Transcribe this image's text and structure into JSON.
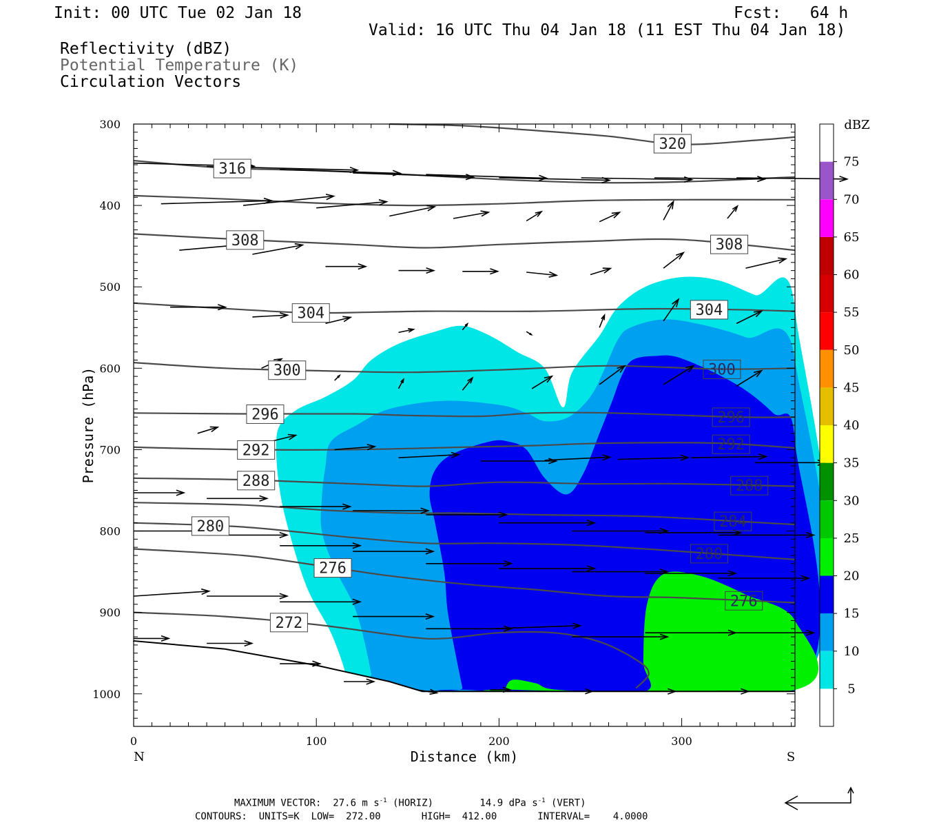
{
  "header": {
    "init": "Init: 00 UTC Tue 02 Jan 18",
    "fcst": "Fcst:   64 h",
    "valid": "Valid: 16 UTC Thu 04 Jan 18 (11 EST Thu 04 Jan 18)",
    "field1": "Reflectivity (dBZ)",
    "field2": "Potential Temperature (K)",
    "field3": "Circulation Vectors"
  },
  "chart_data": {
    "type": "cross-section",
    "xlabel": "Distance (km)",
    "ylabel": "Pressure (hPa)",
    "xlim": [
      0,
      362
    ],
    "ylim": [
      1040,
      300
    ],
    "x_ticks": [
      0,
      100,
      200,
      300
    ],
    "y_ticks": [
      300,
      400,
      500,
      600,
      700,
      800,
      900,
      1000
    ],
    "x_end_labels": {
      "left": "N",
      "right": "S"
    },
    "colorbar": {
      "title": "dBZ",
      "levels": [
        5,
        10,
        15,
        20,
        25,
        30,
        35,
        40,
        45,
        50,
        55,
        60,
        65,
        70,
        75
      ],
      "colors": [
        "#ffffff",
        "#00e6e6",
        "#00a0f0",
        "#0000f0",
        "#00f000",
        "#00c800",
        "#009000",
        "#ffff00",
        "#e6be00",
        "#ff9000",
        "#ff0000",
        "#d60000",
        "#c00000",
        "#ff00ff",
        "#9955c9",
        "#ffffff"
      ]
    },
    "reflectivity_regions": [
      {
        "dbz": 5,
        "color": "#00e6e6",
        "points": [
          [
            116,
            975
          ],
          [
            108,
            925
          ],
          [
            95,
            870
          ],
          [
            85,
            800
          ],
          [
            80,
            750
          ],
          [
            78,
            700
          ],
          [
            80,
            670
          ],
          [
            90,
            650
          ],
          [
            105,
            635
          ],
          [
            120,
            615
          ],
          [
            130,
            590
          ],
          [
            145,
            570
          ],
          [
            165,
            555
          ],
          [
            180,
            548
          ],
          [
            195,
            560
          ],
          [
            210,
            580
          ],
          [
            225,
            600
          ],
          [
            235,
            648
          ],
          [
            240,
            605
          ],
          [
            255,
            560
          ],
          [
            265,
            525
          ],
          [
            280,
            500
          ],
          [
            300,
            488
          ],
          [
            320,
            492
          ],
          [
            340,
            510
          ],
          [
            362,
            528
          ],
          [
            362,
            995
          ],
          [
            116,
            995
          ]
        ]
      },
      {
        "dbz": 10,
        "color": "#00a0f0",
        "points": [
          [
            130,
            975
          ],
          [
            122,
            900
          ],
          [
            110,
            845
          ],
          [
            103,
            800
          ],
          [
            103,
            760
          ],
          [
            105,
            720
          ],
          [
            108,
            690
          ],
          [
            122,
            670
          ],
          [
            140,
            650
          ],
          [
            170,
            640
          ],
          [
            200,
            645
          ],
          [
            215,
            655
          ],
          [
            225,
            665
          ],
          [
            238,
            660
          ],
          [
            250,
            635
          ],
          [
            258,
            600
          ],
          [
            265,
            565
          ],
          [
            272,
            550
          ],
          [
            290,
            540
          ],
          [
            310,
            546
          ],
          [
            335,
            562
          ],
          [
            362,
            590
          ],
          [
            362,
            995
          ],
          [
            130,
            995
          ]
        ]
      },
      {
        "dbz": 15,
        "color": "#0000f0",
        "points": [
          [
            180,
            993
          ],
          [
            177,
            960
          ],
          [
            172,
            900
          ],
          [
            170,
            850
          ],
          [
            165,
            790
          ],
          [
            162,
            755
          ],
          [
            165,
            725
          ],
          [
            175,
            705
          ],
          [
            195,
            690
          ],
          [
            205,
            690
          ],
          [
            215,
            700
          ],
          [
            225,
            735
          ],
          [
            237,
            755
          ],
          [
            246,
            730
          ],
          [
            255,
            680
          ],
          [
            262,
            640
          ],
          [
            267,
            610
          ],
          [
            273,
            590
          ],
          [
            285,
            585
          ],
          [
            300,
            588
          ],
          [
            330,
            620
          ],
          [
            350,
            655
          ],
          [
            362,
            690
          ],
          [
            362,
            995
          ],
          [
            180,
            995
          ]
        ]
      },
      {
        "dbz": 20,
        "color": "#00f000",
        "points": [
          [
            203,
            997
          ],
          [
            207,
            983
          ],
          [
            220,
            987
          ],
          [
            232,
            995
          ],
          [
            280,
            997
          ],
          [
            279,
            960
          ],
          [
            281,
            890
          ],
          [
            290,
            853
          ],
          [
            310,
            855
          ],
          [
            335,
            878
          ],
          [
            362,
            910
          ],
          [
            362,
            995
          ],
          [
            203,
            995
          ]
        ]
      }
    ],
    "contours_K": [
      {
        "value": 320,
        "label": 320,
        "points": [
          [
            140,
            300
          ],
          [
            180,
            302
          ],
          [
            220,
            308
          ],
          [
            260,
            315
          ],
          [
            300,
            325
          ],
          [
            340,
            320
          ],
          [
            362,
            316
          ]
        ]
      },
      {
        "value": 316,
        "label": 316,
        "points": [
          [
            0,
            345
          ],
          [
            50,
            354
          ],
          [
            100,
            357
          ],
          [
            150,
            362
          ],
          [
            200,
            368
          ],
          [
            250,
            372
          ],
          [
            300,
            371
          ],
          [
            362,
            365
          ]
        ]
      },
      {
        "value": 312,
        "points": [
          [
            0,
            388
          ],
          [
            50,
            392
          ],
          [
            100,
            397
          ],
          [
            150,
            400
          ],
          [
            200,
            398
          ],
          [
            250,
            394
          ],
          [
            300,
            393
          ],
          [
            362,
            393
          ]
        ]
      },
      {
        "value": 308,
        "label": 308,
        "points": [
          [
            0,
            435
          ],
          [
            60,
            442
          ],
          [
            120,
            448
          ],
          [
            160,
            452
          ],
          [
            200,
            448
          ],
          [
            250,
            444
          ],
          [
            300,
            442
          ],
          [
            362,
            455
          ]
        ]
      },
      {
        "value": 304,
        "label": 304,
        "points": [
          [
            0,
            520
          ],
          [
            60,
            528
          ],
          [
            100,
            532
          ],
          [
            160,
            530
          ],
          [
            220,
            530
          ],
          [
            280,
            527
          ],
          [
            330,
            528
          ],
          [
            362,
            530
          ]
        ]
      },
      {
        "value": 300,
        "label": 300,
        "points": [
          [
            0,
            593
          ],
          [
            50,
            600
          ],
          [
            100,
            603
          ],
          [
            150,
            605
          ],
          [
            200,
            602
          ],
          [
            260,
            597
          ],
          [
            320,
            601
          ],
          [
            362,
            600
          ]
        ]
      },
      {
        "value": 296,
        "label": 296,
        "points": [
          [
            0,
            655
          ],
          [
            60,
            656
          ],
          [
            120,
            656
          ],
          [
            150,
            658
          ],
          [
            190,
            659
          ],
          [
            220,
            655
          ],
          [
            262,
            655
          ],
          [
            330,
            660
          ],
          [
            362,
            660
          ]
        ]
      },
      {
        "value": 292,
        "label": 292,
        "points": [
          [
            0,
            697
          ],
          [
            60,
            700
          ],
          [
            120,
            700
          ],
          [
            180,
            697
          ],
          [
            220,
            695
          ],
          [
            260,
            692
          ],
          [
            320,
            692
          ],
          [
            362,
            698
          ]
        ]
      },
      {
        "value": 288,
        "label": 288,
        "points": [
          [
            0,
            735
          ],
          [
            60,
            737
          ],
          [
            120,
            742
          ],
          [
            160,
            745
          ],
          [
            200,
            740
          ],
          [
            250,
            742
          ],
          [
            300,
            742
          ],
          [
            362,
            745
          ]
        ]
      },
      {
        "value": 284,
        "label": 284,
        "points": [
          [
            0,
            765
          ],
          [
            60,
            768
          ],
          [
            110,
            775
          ],
          [
            150,
            778
          ],
          [
            180,
            778
          ],
          [
            220,
            780
          ],
          [
            280,
            782
          ],
          [
            330,
            788
          ],
          [
            362,
            792
          ]
        ]
      },
      {
        "value": 280,
        "label": 280,
        "points": [
          [
            0,
            790
          ],
          [
            60,
            795
          ],
          [
            120,
            808
          ],
          [
            160,
            815
          ],
          [
            200,
            815
          ],
          [
            250,
            818
          ],
          [
            300,
            825
          ],
          [
            362,
            835
          ]
        ]
      },
      {
        "value": 276,
        "label": 276,
        "points": [
          [
            0,
            822
          ],
          [
            60,
            830
          ],
          [
            100,
            842
          ],
          [
            140,
            855
          ],
          [
            180,
            865
          ],
          [
            220,
            872
          ],
          [
            260,
            880
          ],
          [
            300,
            882
          ],
          [
            362,
            888
          ]
        ]
      },
      {
        "value": 272,
        "label": 272,
        "points": [
          [
            0,
            900
          ],
          [
            50,
            905
          ],
          [
            100,
            915
          ],
          [
            150,
            930
          ],
          [
            170,
            932
          ],
          [
            200,
            925
          ],
          [
            230,
            925
          ],
          [
            255,
            936
          ],
          [
            275,
            958
          ],
          [
            282,
            975
          ],
          [
            275,
            993
          ]
        ]
      }
    ],
    "terrain_surface_hPa": [
      [
        0,
        935
      ],
      [
        50,
        945
      ],
      [
        100,
        965
      ],
      [
        140,
        985
      ],
      [
        158,
        997
      ],
      [
        362,
        997
      ]
    ]
  },
  "footer": {
    "vec_prefix": "MAXIMUM VECTOR:  27.6 m s",
    "vec_sup": "-1",
    "vec_horiz": " (HORIZ)        14.9 dPa s",
    "vec_sup2": "-1",
    "vec_vert": " (VERT)",
    "contours_line": "CONTOURS:  UNITS=K  LOW=  272.00       HIGH=  412.00       INTERVAL=    4.0000"
  },
  "colors": {
    "contour": "#4a4a4a",
    "vector": "#000000",
    "frame": "#000000"
  }
}
